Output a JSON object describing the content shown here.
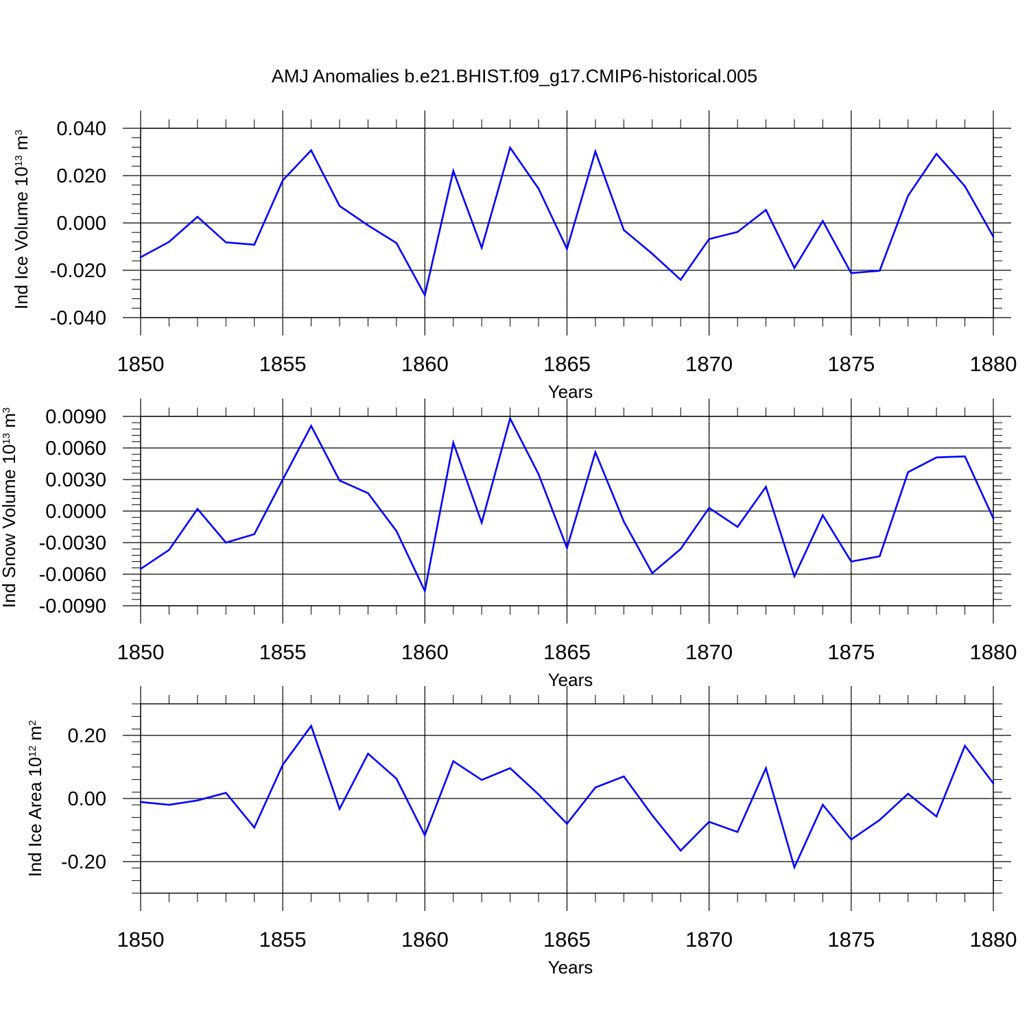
{
  "title": "AMJ Anomalies b.e21.BHIST.f09_g17.CMIP6-historical.005",
  "colors": {
    "line": "#0000ff",
    "axis": "#000000",
    "grid": "#888888"
  },
  "chart_data": [
    {
      "type": "line",
      "name": "ice-volume",
      "ylabel": "Ind Ice Volume",
      "ylabel_unit_base": "10",
      "ylabel_unit_exp": "13",
      "ylabel_unit": "m",
      "ylabel_unit_power": "3",
      "xlabel": "Years",
      "xlim": [
        1850,
        1880
      ],
      "ylim": [
        -0.04,
        0.04
      ],
      "x_ticks": [
        "1850",
        "1855",
        "1860",
        "1865",
        "1870",
        "1875",
        "1880"
      ],
      "y_ticks": [
        {
          "v": 0.04,
          "label": "0.040"
        },
        {
          "v": 0.02,
          "label": "0.020"
        },
        {
          "v": 0.0,
          "label": "0.000"
        },
        {
          "v": -0.02,
          "label": "-0.020"
        },
        {
          "v": -0.04,
          "label": "-0.040"
        }
      ],
      "grid_x": true,
      "x": [
        1850,
        1851,
        1852,
        1853,
        1854,
        1855,
        1856,
        1857,
        1858,
        1859,
        1860,
        1861,
        1862,
        1863,
        1864,
        1865,
        1866,
        1867,
        1868,
        1869,
        1870,
        1871,
        1872,
        1873,
        1874,
        1875,
        1876,
        1877,
        1878,
        1879,
        1880
      ],
      "y": [
        -0.0145,
        -0.008,
        0.0026,
        -0.0082,
        -0.0092,
        0.018,
        0.0307,
        0.0072,
        -0.001,
        -0.0085,
        -0.0305,
        0.022,
        -0.0105,
        0.0318,
        0.0145,
        -0.011,
        0.0302,
        -0.003,
        -0.013,
        -0.024,
        -0.0068,
        -0.0038,
        0.0055,
        -0.019,
        0.0008,
        -0.0212,
        -0.0202,
        0.0115,
        0.0292,
        0.0155,
        -0.0058
      ]
    },
    {
      "type": "line",
      "name": "snow-volume",
      "ylabel": "Ind Snow Volume",
      "ylabel_unit_base": "10",
      "ylabel_unit_exp": "13",
      "ylabel_unit": "m",
      "ylabel_unit_power": "3",
      "xlabel": "Years",
      "xlim": [
        1850,
        1880
      ],
      "ylim": [
        -0.009,
        0.009
      ],
      "x_ticks": [
        "1850",
        "1855",
        "1860",
        "1865",
        "1870",
        "1875",
        "1880"
      ],
      "y_ticks": [
        {
          "v": 0.009,
          "label": "0.0090"
        },
        {
          "v": 0.006,
          "label": "0.0060"
        },
        {
          "v": 0.003,
          "label": "0.0030"
        },
        {
          "v": 0.0,
          "label": "0.0000"
        },
        {
          "v": -0.003,
          "label": "-0.0030"
        },
        {
          "v": -0.006,
          "label": "-0.0060"
        },
        {
          "v": -0.009,
          "label": "-0.0090"
        }
      ],
      "grid_x": true,
      "x": [
        1850,
        1851,
        1852,
        1853,
        1854,
        1855,
        1856,
        1857,
        1858,
        1859,
        1860,
        1861,
        1862,
        1863,
        1864,
        1865,
        1866,
        1867,
        1868,
        1869,
        1870,
        1871,
        1872,
        1873,
        1874,
        1875,
        1876,
        1877,
        1878,
        1879,
        1880
      ],
      "y": [
        -0.0055,
        -0.0037,
        0.0002,
        -0.003,
        -0.0022,
        0.003,
        0.0081,
        0.0029,
        0.0017,
        -0.0019,
        -0.0076,
        0.0065,
        -0.0011,
        0.0088,
        0.0035,
        -0.0035,
        0.0056,
        -0.001,
        -0.0059,
        -0.0036,
        0.0003,
        -0.0015,
        0.0023,
        -0.0062,
        -0.0004,
        -0.0048,
        -0.0043,
        0.0037,
        0.0051,
        0.0052,
        -0.0007
      ]
    },
    {
      "type": "line",
      "name": "ice-area",
      "ylabel": "Ind Ice Area",
      "ylabel_unit_base": "10",
      "ylabel_unit_exp": "12",
      "ylabel_unit": "m",
      "ylabel_unit_power": "2",
      "xlabel": "Years",
      "xlim": [
        1850,
        1880
      ],
      "ylim": [
        -0.3,
        0.3
      ],
      "x_ticks": [
        "1850",
        "1855",
        "1860",
        "1865",
        "1870",
        "1875",
        "1880"
      ],
      "y_ticks": [
        {
          "v": 0.2,
          "label": "0.20"
        },
        {
          "v": 0.0,
          "label": "0.00"
        },
        {
          "v": -0.2,
          "label": "-0.20"
        }
      ],
      "grid_x": true,
      "x": [
        1850,
        1851,
        1852,
        1853,
        1854,
        1855,
        1856,
        1857,
        1858,
        1859,
        1860,
        1861,
        1862,
        1863,
        1864,
        1865,
        1866,
        1867,
        1868,
        1869,
        1870,
        1871,
        1872,
        1873,
        1874,
        1875,
        1876,
        1877,
        1878,
        1879,
        1880
      ],
      "y": [
        -0.011,
        -0.02,
        -0.006,
        0.018,
        -0.092,
        0.107,
        0.23,
        -0.033,
        0.142,
        0.063,
        -0.116,
        0.118,
        0.059,
        0.096,
        0.013,
        -0.08,
        0.035,
        0.07,
        -0.053,
        -0.165,
        -0.074,
        -0.106,
        0.096,
        -0.218,
        -0.02,
        -0.13,
        -0.068,
        0.015,
        -0.057,
        0.167,
        0.048
      ]
    }
  ]
}
